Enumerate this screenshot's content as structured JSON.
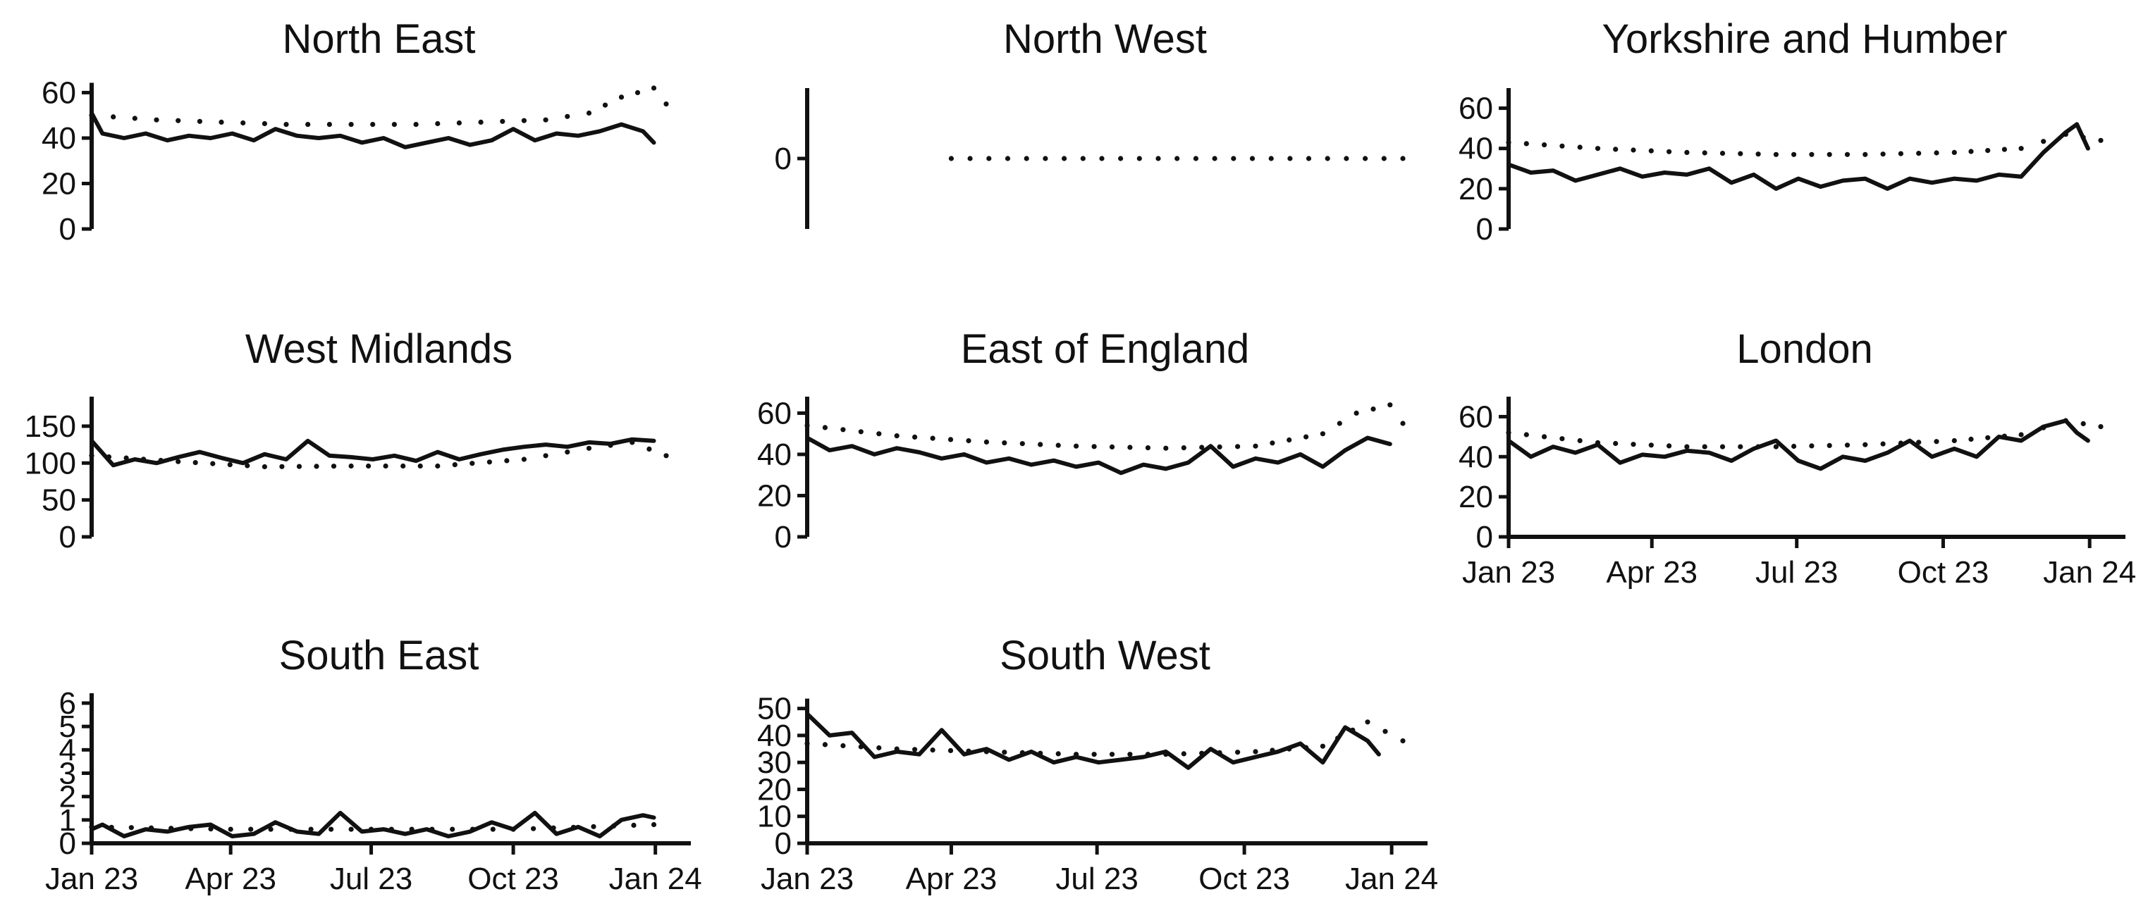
{
  "chart_data": [
    {
      "type": "line",
      "title": "North East",
      "ylim": [
        0,
        62
      ],
      "yticks": [
        0,
        20,
        40,
        60
      ],
      "xlim": [
        "2023-01-01",
        "2024-01-08"
      ],
      "xticks": [],
      "series": [
        {
          "style": "solid",
          "x": [
            "2023-01-01",
            "2023-01-08",
            "2023-01-22",
            "2023-02-05",
            "2023-02-19",
            "2023-03-05",
            "2023-03-19",
            "2023-04-02",
            "2023-04-16",
            "2023-04-30",
            "2023-05-14",
            "2023-05-28",
            "2023-06-11",
            "2023-06-25",
            "2023-07-09",
            "2023-07-23",
            "2023-08-06",
            "2023-08-20",
            "2023-09-03",
            "2023-09-17",
            "2023-10-01",
            "2023-10-15",
            "2023-10-29",
            "2023-11-12",
            "2023-11-26",
            "2023-12-10",
            "2023-12-24",
            "2023-12-31"
          ],
          "values": [
            51,
            42,
            40,
            42,
            39,
            41,
            40,
            42,
            39,
            44,
            41,
            40,
            41,
            38,
            40,
            36,
            38,
            40,
            37,
            39,
            44,
            39,
            42,
            41,
            43,
            46,
            43,
            38
          ]
        },
        {
          "style": "dotted",
          "x": [
            "2023-01-01",
            "2023-02-12",
            "2023-03-26",
            "2023-05-07",
            "2023-06-18",
            "2023-07-30",
            "2023-09-10",
            "2023-10-22",
            "2023-11-19",
            "2023-12-10",
            "2023-12-31",
            "2024-01-08"
          ],
          "values": [
            50,
            48,
            47,
            46,
            46,
            46,
            47,
            48,
            51,
            58,
            62,
            55
          ]
        }
      ]
    },
    {
      "type": "line",
      "title": "North West",
      "ylim": [
        -1,
        1
      ],
      "yticks": [
        0
      ],
      "xlim": [
        "2023-01-01",
        "2024-01-08"
      ],
      "xticks": [],
      "series": [
        {
          "style": "dotted",
          "x": [
            "2023-04-01",
            "2024-01-08"
          ],
          "values": [
            0,
            0
          ]
        }
      ]
    },
    {
      "type": "line",
      "title": "Yorkshire and Humber",
      "ylim": [
        0,
        70
      ],
      "yticks": [
        0,
        20,
        40,
        60
      ],
      "xlim": [
        "2023-01-01",
        "2024-01-08"
      ],
      "xticks": [],
      "series": [
        {
          "style": "solid",
          "x": [
            "2023-01-01",
            "2023-01-15",
            "2023-01-29",
            "2023-02-12",
            "2023-02-26",
            "2023-03-12",
            "2023-03-26",
            "2023-04-09",
            "2023-04-23",
            "2023-05-07",
            "2023-05-21",
            "2023-06-04",
            "2023-06-18",
            "2023-07-02",
            "2023-07-16",
            "2023-07-30",
            "2023-08-13",
            "2023-08-27",
            "2023-09-10",
            "2023-09-24",
            "2023-10-08",
            "2023-10-22",
            "2023-11-05",
            "2023-11-19",
            "2023-12-03",
            "2023-12-17",
            "2023-12-24",
            "2023-12-31"
          ],
          "values": [
            32,
            28,
            29,
            24,
            27,
            30,
            26,
            28,
            27,
            30,
            23,
            27,
            20,
            25,
            21,
            24,
            25,
            20,
            25,
            23,
            25,
            24,
            27,
            26,
            38,
            48,
            52,
            40
          ]
        },
        {
          "style": "dotted",
          "x": [
            "2023-01-01",
            "2023-02-26",
            "2023-04-23",
            "2023-06-18",
            "2023-08-13",
            "2023-10-08",
            "2023-11-19",
            "2023-12-17",
            "2024-01-08"
          ],
          "values": [
            43,
            40,
            38,
            37,
            37,
            38,
            40,
            47,
            44
          ]
        }
      ]
    },
    {
      "type": "line",
      "title": "West Midlands",
      "ylim": [
        0,
        190
      ],
      "yticks": [
        0,
        50,
        100,
        150
      ],
      "xlim": [
        "2023-01-01",
        "2024-01-08"
      ],
      "xticks": [],
      "series": [
        {
          "style": "solid",
          "x": [
            "2023-01-01",
            "2023-01-15",
            "2023-01-29",
            "2023-02-12",
            "2023-02-26",
            "2023-03-12",
            "2023-03-26",
            "2023-04-09",
            "2023-04-23",
            "2023-05-07",
            "2023-05-21",
            "2023-06-04",
            "2023-06-18",
            "2023-07-02",
            "2023-07-16",
            "2023-07-30",
            "2023-08-13",
            "2023-08-27",
            "2023-09-10",
            "2023-09-24",
            "2023-10-08",
            "2023-10-22",
            "2023-11-05",
            "2023-11-19",
            "2023-12-03",
            "2023-12-17",
            "2023-12-31"
          ],
          "values": [
            130,
            97,
            105,
            100,
            108,
            115,
            107,
            100,
            112,
            105,
            130,
            110,
            108,
            105,
            110,
            103,
            115,
            105,
            112,
            118,
            122,
            125,
            122,
            128,
            126,
            132,
            130
          ]
        },
        {
          "style": "dotted",
          "x": [
            "2023-01-01",
            "2023-02-26",
            "2023-04-23",
            "2023-06-18",
            "2023-08-13",
            "2023-10-08",
            "2023-11-19",
            "2023-12-17",
            "2024-01-08"
          ],
          "values": [
            110,
            102,
            95,
            96,
            96,
            105,
            120,
            128,
            110
          ]
        }
      ]
    },
    {
      "type": "line",
      "title": "East of England",
      "ylim": [
        0,
        68
      ],
      "yticks": [
        0,
        20,
        40,
        60
      ],
      "xlim": [
        "2023-01-01",
        "2024-01-08"
      ],
      "xticks": [],
      "series": [
        {
          "style": "solid",
          "x": [
            "2023-01-01",
            "2023-01-15",
            "2023-01-29",
            "2023-02-12",
            "2023-02-26",
            "2023-03-12",
            "2023-03-26",
            "2023-04-09",
            "2023-04-23",
            "2023-05-07",
            "2023-05-21",
            "2023-06-04",
            "2023-06-18",
            "2023-07-02",
            "2023-07-16",
            "2023-07-30",
            "2023-08-13",
            "2023-08-27",
            "2023-09-10",
            "2023-09-24",
            "2023-10-08",
            "2023-10-22",
            "2023-11-05",
            "2023-11-19",
            "2023-12-03",
            "2023-12-17",
            "2023-12-31"
          ],
          "values": [
            48,
            42,
            44,
            40,
            43,
            41,
            38,
            40,
            36,
            38,
            35,
            37,
            34,
            36,
            31,
            35,
            33,
            36,
            44,
            34,
            38,
            36,
            40,
            34,
            42,
            48,
            45
          ]
        },
        {
          "style": "dotted",
          "x": [
            "2023-01-01",
            "2023-02-26",
            "2023-04-23",
            "2023-06-18",
            "2023-08-13",
            "2023-10-08",
            "2023-11-19",
            "2023-12-10",
            "2023-12-31",
            "2024-01-08"
          ],
          "values": [
            54,
            49,
            46,
            44,
            43,
            44,
            50,
            60,
            64,
            55
          ]
        }
      ]
    },
    {
      "type": "line",
      "title": "London",
      "ylim": [
        0,
        70
      ],
      "yticks": [
        0,
        20,
        40,
        60
      ],
      "xlim": [
        "2023-01-01",
        "2024-01-08"
      ],
      "xticks": [
        "Jan 23",
        "Apr 23",
        "Jul 23",
        "Oct 23",
        "Jan 24"
      ],
      "series": [
        {
          "style": "solid",
          "x": [
            "2023-01-01",
            "2023-01-15",
            "2023-01-29",
            "2023-02-12",
            "2023-02-26",
            "2023-03-12",
            "2023-03-26",
            "2023-04-09",
            "2023-04-23",
            "2023-05-07",
            "2023-05-21",
            "2023-06-04",
            "2023-06-18",
            "2023-07-02",
            "2023-07-16",
            "2023-07-30",
            "2023-08-13",
            "2023-08-27",
            "2023-09-10",
            "2023-09-24",
            "2023-10-08",
            "2023-10-22",
            "2023-11-05",
            "2023-11-19",
            "2023-12-03",
            "2023-12-17",
            "2023-12-24",
            "2023-12-31"
          ],
          "values": [
            48,
            40,
            45,
            42,
            46,
            37,
            41,
            40,
            43,
            42,
            38,
            44,
            48,
            38,
            34,
            40,
            38,
            42,
            48,
            40,
            44,
            40,
            50,
            48,
            55,
            58,
            52,
            48
          ]
        },
        {
          "style": "dotted",
          "x": [
            "2023-01-01",
            "2023-02-26",
            "2023-04-23",
            "2023-06-18",
            "2023-08-13",
            "2023-10-08",
            "2023-11-19",
            "2023-12-17",
            "2024-01-08"
          ],
          "values": [
            52,
            47,
            45,
            45,
            46,
            48,
            51,
            58,
            55
          ]
        }
      ]
    },
    {
      "type": "line",
      "title": "South East",
      "ylim": [
        0,
        6
      ],
      "yticks": [
        0,
        1,
        2,
        3,
        4,
        5,
        6
      ],
      "xlim": [
        "2023-01-01",
        "2024-01-08"
      ],
      "xticks": [
        "Jan 23",
        "Apr 23",
        "Jul 23",
        "Oct 23",
        "Jan 24"
      ],
      "series": [
        {
          "style": "solid",
          "x": [
            "2023-01-01",
            "2023-01-08",
            "2023-01-22",
            "2023-02-05",
            "2023-02-19",
            "2023-03-05",
            "2023-03-19",
            "2023-04-02",
            "2023-04-16",
            "2023-04-30",
            "2023-05-14",
            "2023-05-28",
            "2023-06-11",
            "2023-06-25",
            "2023-07-09",
            "2023-07-23",
            "2023-08-06",
            "2023-08-20",
            "2023-09-03",
            "2023-09-17",
            "2023-10-01",
            "2023-10-15",
            "2023-10-29",
            "2023-11-12",
            "2023-11-26",
            "2023-12-10",
            "2023-12-24",
            "2023-12-31"
          ],
          "values": [
            0.6,
            0.8,
            0.3,
            0.6,
            0.5,
            0.7,
            0.8,
            0.3,
            0.4,
            0.9,
            0.5,
            0.4,
            1.3,
            0.5,
            0.6,
            0.4,
            0.6,
            0.3,
            0.5,
            0.9,
            0.6,
            1.3,
            0.4,
            0.7,
            0.3,
            1.0,
            1.2,
            1.1
          ]
        },
        {
          "style": "dotted",
          "x": [
            "2023-01-01",
            "2023-04-01",
            "2023-07-01",
            "2023-10-01",
            "2023-12-31"
          ],
          "values": [
            0.7,
            0.6,
            0.6,
            0.6,
            0.8
          ]
        }
      ]
    },
    {
      "type": "line",
      "title": "South West",
      "ylim": [
        0,
        52
      ],
      "yticks": [
        0,
        10,
        20,
        30,
        40,
        50
      ],
      "xlim": [
        "2023-01-01",
        "2024-01-08"
      ],
      "xticks": [
        "Jan 23",
        "Apr 23",
        "Jul 23",
        "Oct 23",
        "Jan 24"
      ],
      "series": [
        {
          "style": "solid",
          "x": [
            "2023-01-01",
            "2023-01-15",
            "2023-01-29",
            "2023-02-12",
            "2023-02-26",
            "2023-03-12",
            "2023-03-26",
            "2023-04-09",
            "2023-04-23",
            "2023-05-07",
            "2023-05-21",
            "2023-06-04",
            "2023-06-18",
            "2023-07-02",
            "2023-07-16",
            "2023-07-30",
            "2023-08-13",
            "2023-08-27",
            "2023-09-10",
            "2023-09-24",
            "2023-10-08",
            "2023-10-22",
            "2023-11-05",
            "2023-11-19",
            "2023-12-03",
            "2023-12-17",
            "2023-12-24"
          ],
          "values": [
            48,
            40,
            41,
            32,
            34,
            33,
            42,
            33,
            35,
            31,
            34,
            30,
            32,
            30,
            31,
            32,
            34,
            28,
            35,
            30,
            32,
            34,
            37,
            30,
            43,
            38,
            33
          ]
        },
        {
          "style": "dotted",
          "x": [
            "2023-01-01",
            "2023-02-26",
            "2023-04-23",
            "2023-06-18",
            "2023-08-13",
            "2023-10-08",
            "2023-11-19",
            "2023-12-17",
            "2024-01-08"
          ],
          "values": [
            37,
            35,
            34,
            33,
            33,
            34,
            36,
            45,
            38
          ]
        }
      ]
    }
  ]
}
